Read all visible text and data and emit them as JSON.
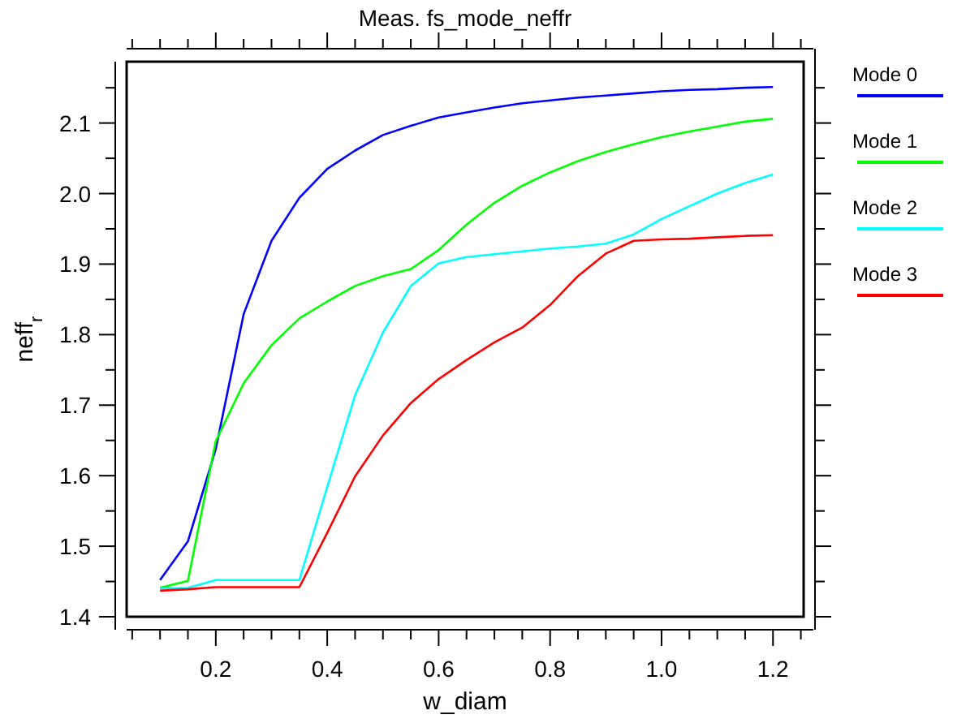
{
  "chart_data": {
    "type": "line",
    "title": "Meas. fs_mode_neffr",
    "xlabel": "w_diam",
    "ylabel": "neff$_{r}$",
    "x": [
      0.1,
      0.15,
      0.2,
      0.25,
      0.3,
      0.35,
      0.4,
      0.45,
      0.5,
      0.55,
      0.6,
      0.65,
      0.7,
      0.75,
      0.8,
      0.85,
      0.9,
      0.95,
      1.0,
      1.05,
      1.1,
      1.15,
      1.2
    ],
    "series": [
      {
        "name": "Mode 0",
        "color": "#0000ff",
        "values": [
          1.452,
          1.507,
          1.638,
          1.829,
          1.933,
          1.994,
          2.035,
          2.061,
          2.083,
          2.096,
          2.108,
          2.115,
          2.122,
          2.128,
          2.132,
          2.136,
          2.139,
          2.142,
          2.145,
          2.147,
          2.148,
          2.15,
          2.151
        ]
      },
      {
        "name": "Mode 1",
        "color": "#00ff00",
        "values": [
          1.441,
          1.451,
          1.649,
          1.731,
          1.785,
          1.823,
          1.847,
          1.869,
          1.883,
          1.893,
          1.92,
          1.956,
          1.987,
          2.011,
          2.03,
          2.046,
          2.059,
          2.07,
          2.08,
          2.088,
          2.095,
          2.102,
          2.106
        ]
      },
      {
        "name": "Mode 2",
        "color": "#00ffff",
        "values": [
          1.44,
          1.441,
          1.452,
          1.452,
          1.452,
          1.452,
          1.584,
          1.714,
          1.803,
          1.869,
          1.901,
          1.91,
          1.914,
          1.918,
          1.922,
          1.925,
          1.929,
          1.942,
          1.964,
          1.982,
          2.0,
          2.015,
          2.027
        ]
      },
      {
        "name": "Mode 3",
        "color": "#ff0000",
        "values": [
          1.437,
          1.439,
          1.442,
          1.442,
          1.442,
          1.442,
          1.519,
          1.599,
          1.657,
          1.703,
          1.737,
          1.764,
          1.789,
          1.81,
          1.842,
          1.883,
          1.915,
          1.933,
          1.935,
          1.936,
          1.938,
          1.94,
          1.941
        ]
      }
    ],
    "xlim": [
      0.04,
      1.255
    ],
    "ylim": [
      1.4,
      2.187
    ],
    "xticks": [
      {
        "value": 0.05,
        "label": null
      },
      {
        "value": 0.1,
        "label": null
      },
      {
        "value": 0.15,
        "label": null
      },
      0.2,
      {
        "value": 0.25,
        "label": null
      },
      {
        "value": 0.3,
        "label": null
      },
      {
        "value": 0.35,
        "label": null
      },
      0.4,
      {
        "value": 0.45,
        "label": null
      },
      {
        "value": 0.5,
        "label": null
      },
      {
        "value": 0.55,
        "label": null
      },
      0.6,
      {
        "value": 0.65,
        "label": null
      },
      {
        "value": 0.7,
        "label": null
      },
      {
        "value": 0.75,
        "label": null
      },
      0.8,
      {
        "value": 0.85,
        "label": null
      },
      {
        "value": 0.9,
        "label": null
      },
      {
        "value": 0.95,
        "label": null
      },
      {
        "value": 1.0,
        "label": "1.0"
      },
      {
        "value": 1.05,
        "label": null
      },
      {
        "value": 1.1,
        "label": null
      },
      {
        "value": 1.15,
        "label": null
      },
      1.2,
      {
        "value": 1.25,
        "label": null
      }
    ],
    "yticks": [
      1.4,
      {
        "value": 1.45,
        "label": null
      },
      1.5,
      {
        "value": 1.55,
        "label": null
      },
      1.6,
      {
        "value": 1.65,
        "label": null
      },
      1.7,
      {
        "value": 1.75,
        "label": null
      },
      1.8,
      {
        "value": 1.85,
        "label": null
      },
      {
        "value": 1.9,
        "label": "1.9"
      },
      {
        "value": 1.95,
        "label": null
      },
      {
        "value": 2.0,
        "label": "2.0"
      },
      {
        "value": 2.05,
        "label": null
      },
      2.1,
      {
        "value": 2.15,
        "label": null
      }
    ],
    "grid": false,
    "legend": "right",
    "marker": "none",
    "line_style": "solid"
  }
}
